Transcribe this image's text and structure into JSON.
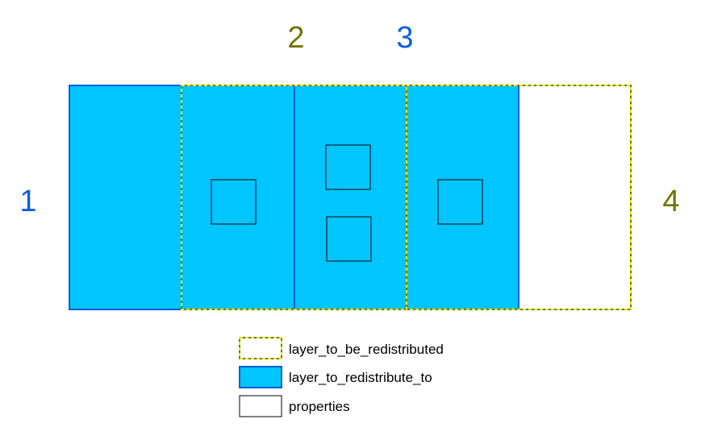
{
  "colors": {
    "blue_fill": "#00C5FF",
    "blue_stroke": "#0A5FD8",
    "olive": "#727300",
    "dash_yellow": "#E6E600",
    "black": "#000000",
    "white": "#FFFFFF"
  },
  "labels": {
    "region_1": "1",
    "region_2": "2",
    "region_3": "3",
    "region_4": "4"
  },
  "legend": {
    "items": [
      {
        "label": "layer_to_be_redistributed",
        "style": "dashed-olive-yellow outline"
      },
      {
        "label": "layer_to_redistribute_to",
        "style": "blue fill"
      },
      {
        "label": "properties",
        "style": "white box black outline"
      }
    ]
  }
}
